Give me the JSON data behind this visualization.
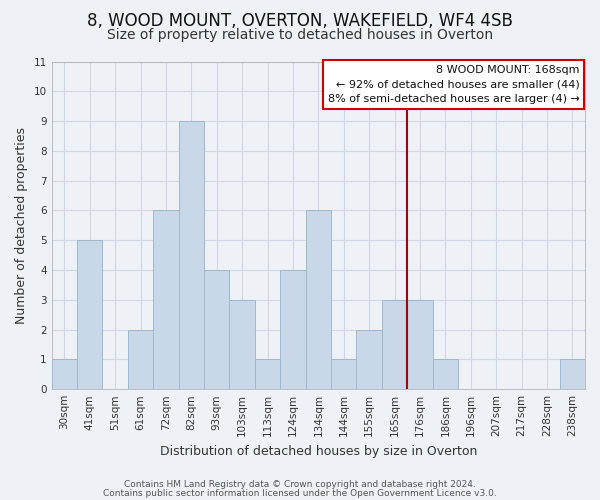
{
  "title": "8, WOOD MOUNT, OVERTON, WAKEFIELD, WF4 4SB",
  "subtitle": "Size of property relative to detached houses in Overton",
  "xlabel": "Distribution of detached houses by size in Overton",
  "ylabel": "Number of detached properties",
  "bar_labels": [
    "30sqm",
    "41sqm",
    "51sqm",
    "61sqm",
    "72sqm",
    "82sqm",
    "93sqm",
    "103sqm",
    "113sqm",
    "124sqm",
    "134sqm",
    "144sqm",
    "155sqm",
    "165sqm",
    "176sqm",
    "186sqm",
    "196sqm",
    "207sqm",
    "217sqm",
    "228sqm",
    "238sqm"
  ],
  "bar_values": [
    1,
    5,
    0,
    2,
    6,
    9,
    4,
    3,
    1,
    4,
    6,
    1,
    2,
    3,
    3,
    1,
    0,
    0,
    0,
    0,
    1
  ],
  "bar_color": "#c8d8e8",
  "bar_edge_color": "#a0b8cc",
  "grid_color": "#d0d8e8",
  "vline_x": 13.5,
  "vline_color": "#aa0000",
  "ylim": [
    0,
    11
  ],
  "yticks": [
    0,
    1,
    2,
    3,
    4,
    5,
    6,
    7,
    8,
    9,
    10,
    11
  ],
  "annotation_title": "8 WOOD MOUNT: 168sqm",
  "annotation_line1": "← 92% of detached houses are smaller (44)",
  "annotation_line2": "8% of semi-detached houses are larger (4) →",
  "annotation_box_color": "#ffffff",
  "annotation_box_edge": "#cc0000",
  "footer1": "Contains HM Land Registry data © Crown copyright and database right 2024.",
  "footer2": "Contains public sector information licensed under the Open Government Licence v3.0.",
  "title_fontsize": 12,
  "subtitle_fontsize": 10,
  "ylabel_fontsize": 9,
  "xlabel_fontsize": 9,
  "tick_fontsize": 7.5,
  "footer_fontsize": 6.5,
  "bg_color": "#eef2f7"
}
